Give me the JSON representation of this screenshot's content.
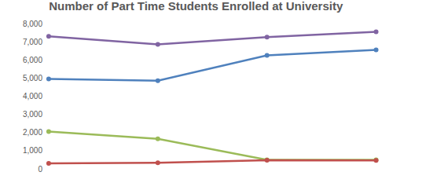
{
  "chart_data": {
    "type": "line",
    "title": "Number of Part Time Students Enrolled at University",
    "categories": [
      null,
      null,
      null,
      null
    ],
    "series": [
      {
        "color": "#8064a2",
        "values": [
          7300,
          6850,
          7250,
          7550
        ]
      },
      {
        "color": "#4f81bd",
        "values": [
          4950,
          4850,
          6250,
          6550
        ]
      },
      {
        "color": "#9bbb59",
        "values": [
          2050,
          1650,
          500,
          500
        ]
      },
      {
        "color": "#c0504d",
        "values": [
          300,
          330,
          480,
          460
        ]
      }
    ],
    "ylim": [
      0,
      8000
    ],
    "yticks": [
      0,
      {
        "value": 1000,
        "label": "1,000"
      },
      {
        "value": 2000,
        "label": "2,000"
      },
      {
        "value": 3000,
        "label": "3,000"
      },
      {
        "value": 4000,
        "label": "4,000"
      },
      {
        "value": 5000,
        "label": "5,000"
      },
      {
        "value": 6000,
        "label": "6,000"
      },
      {
        "value": 7000,
        "label": "7,000"
      },
      {
        "value": 8000,
        "label": "8,000"
      }
    ],
    "grid": false,
    "marker": "circle",
    "tick_labels": "y"
  }
}
